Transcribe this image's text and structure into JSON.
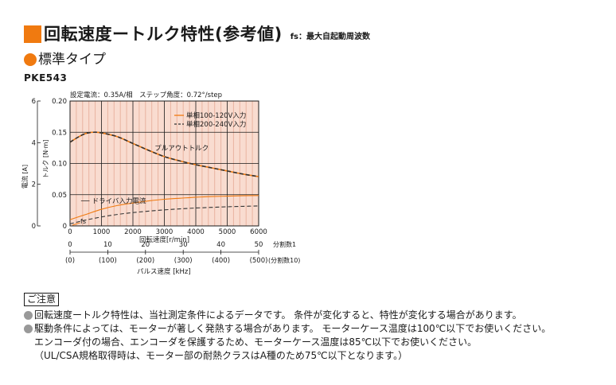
{
  "header": {
    "title": "回転速度ートルク特性(参考値)",
    "note": "fs：最大自起動周波数",
    "subtitle": "標準タイプ",
    "model": "PKE543"
  },
  "colors": {
    "accent": "#f07a10",
    "band_fill": "#f9dcd0",
    "band_line": "#e9b3a0",
    "series_1": "#f07a10",
    "series_2": "#333333",
    "grid": "#1a1a1a"
  },
  "chart_data": {
    "type": "line",
    "condition": "設定電流：0.35A/相　ステップ角度：0.72°/step",
    "xlabel": "回転速度[r/min]",
    "xlim": [
      0,
      6000
    ],
    "x_ticks": [
      "0",
      "1000",
      "2000",
      "3000",
      "4000",
      "5000",
      "6000"
    ],
    "ylabel_left_outer": "電流 [A]",
    "ylabel_left_inner": "トルク [N·m]",
    "ylim_torque": [
      0,
      0.2
    ],
    "torque_ticks": [
      "0",
      "0.05",
      "0.10",
      "0.15",
      "0.20"
    ],
    "ylim_current": [
      0,
      6
    ],
    "current_ticks": [
      "0",
      "2",
      "4",
      "6"
    ],
    "legend": [
      "単相100-120V入力",
      "単相200-240V入力"
    ],
    "annotations": {
      "pullout": "プルアウトトルク",
      "current": "ドライバ入力電流",
      "fs": "fs"
    },
    "series": [
      {
        "name": "単相100-120V入力",
        "curve": "pullout_torque",
        "x": [
          0,
          250,
          500,
          750,
          1000,
          1500,
          2000,
          2500,
          3000,
          3500,
          4000,
          4500,
          5000,
          5500,
          6000
        ],
        "values": [
          0.134,
          0.142,
          0.148,
          0.15,
          0.149,
          0.143,
          0.132,
          0.121,
          0.111,
          0.104,
          0.098,
          0.093,
          0.088,
          0.083,
          0.079
        ]
      },
      {
        "name": "単相200-240V入力",
        "curve": "pullout_torque",
        "x": [
          0,
          250,
          500,
          750,
          1000,
          1500,
          2000,
          2500,
          3000,
          3500,
          4000,
          4500,
          5000,
          5500,
          6000
        ],
        "values": [
          0.134,
          0.142,
          0.148,
          0.15,
          0.149,
          0.143,
          0.132,
          0.121,
          0.111,
          0.104,
          0.098,
          0.093,
          0.088,
          0.083,
          0.079
        ]
      },
      {
        "name": "単相100-120V入力",
        "curve": "driver_input_current",
        "x": [
          0,
          500,
          1000,
          1500,
          2000,
          2500,
          3000,
          3500,
          4000,
          4500,
          5000,
          5500,
          6000
        ],
        "values": [
          0.3,
          0.55,
          0.8,
          0.98,
          1.1,
          1.2,
          1.28,
          1.33,
          1.38,
          1.41,
          1.43,
          1.45,
          1.46
        ]
      },
      {
        "name": "単相200-240V入力",
        "curve": "driver_input_current",
        "x": [
          0,
          500,
          1000,
          1500,
          2000,
          2500,
          3000,
          3500,
          4000,
          4500,
          5000,
          5500,
          6000
        ],
        "values": [
          0.1,
          0.28,
          0.43,
          0.55,
          0.64,
          0.71,
          0.77,
          0.82,
          0.86,
          0.89,
          0.92,
          0.94,
          0.96
        ]
      }
    ],
    "pulse_axis": {
      "label": "パルス速度 [kHz]",
      "ticks": [
        "0",
        "10",
        "20",
        "30",
        "40",
        "50"
      ],
      "ticks_alt": [
        "(0)",
        "(100)",
        "(200)",
        "(300)",
        "(400)",
        "(500)"
      ],
      "side_1": "分割数1",
      "side_2": "(分割数10)"
    },
    "grid": true,
    "legend_position": "top-right"
  },
  "notes": {
    "heading": "ご注意",
    "lines": [
      "回転速度ートルク特性は、当社測定条件によるデータです。 条件が変化すると、特性が変化する場合があります。",
      "駆動条件によっては、モーターが著しく発熱する場合があります。 モーターケース温度は100℃以下でお使いください。",
      "エンコーダ付の場合、エンコーダを保護するため、モーターケース温度は85℃以下でお使いください。",
      "（UL/CSA規格取得時は、モーター部の耐熱クラスはA種のため75℃以下となります。）"
    ]
  }
}
